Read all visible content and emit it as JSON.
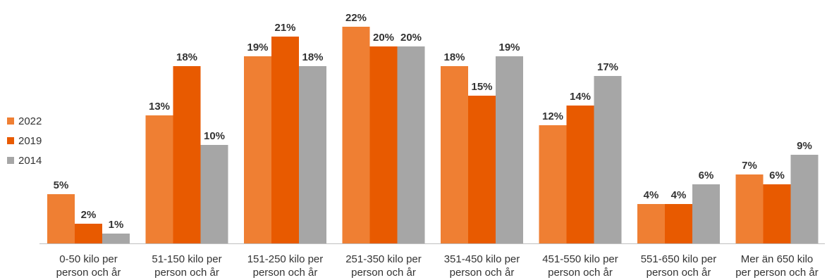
{
  "chart_data": {
    "type": "bar",
    "title": "",
    "xlabel": "",
    "ylabel": "",
    "ylim": [
      0,
      22
    ],
    "grid": false,
    "legend_position": "left",
    "value_suffix": "%",
    "categories": [
      [
        "0-50 kilo per",
        "person och år"
      ],
      [
        "51-150 kilo per",
        "person och år"
      ],
      [
        "151-250 kilo per",
        "person och år"
      ],
      [
        "251-350 kilo per",
        "person och år"
      ],
      [
        "351-450 kilo per",
        "person och år"
      ],
      [
        "451-550 kilo per",
        "person och år"
      ],
      [
        "551-650 kilo per",
        "person och år"
      ],
      [
        "Mer än 650 kilo",
        "per person och år"
      ]
    ],
    "series": [
      {
        "name": "2022",
        "color": "#ef7f33",
        "values": [
          5,
          13,
          19,
          22,
          18,
          12,
          4,
          7
        ]
      },
      {
        "name": "2019",
        "color": "#e85a00",
        "values": [
          2,
          18,
          21,
          20,
          15,
          14,
          4,
          6
        ]
      },
      {
        "name": "2014",
        "color": "#a6a6a6",
        "values": [
          1,
          10,
          18,
          20,
          19,
          17,
          6,
          9
        ]
      }
    ]
  }
}
